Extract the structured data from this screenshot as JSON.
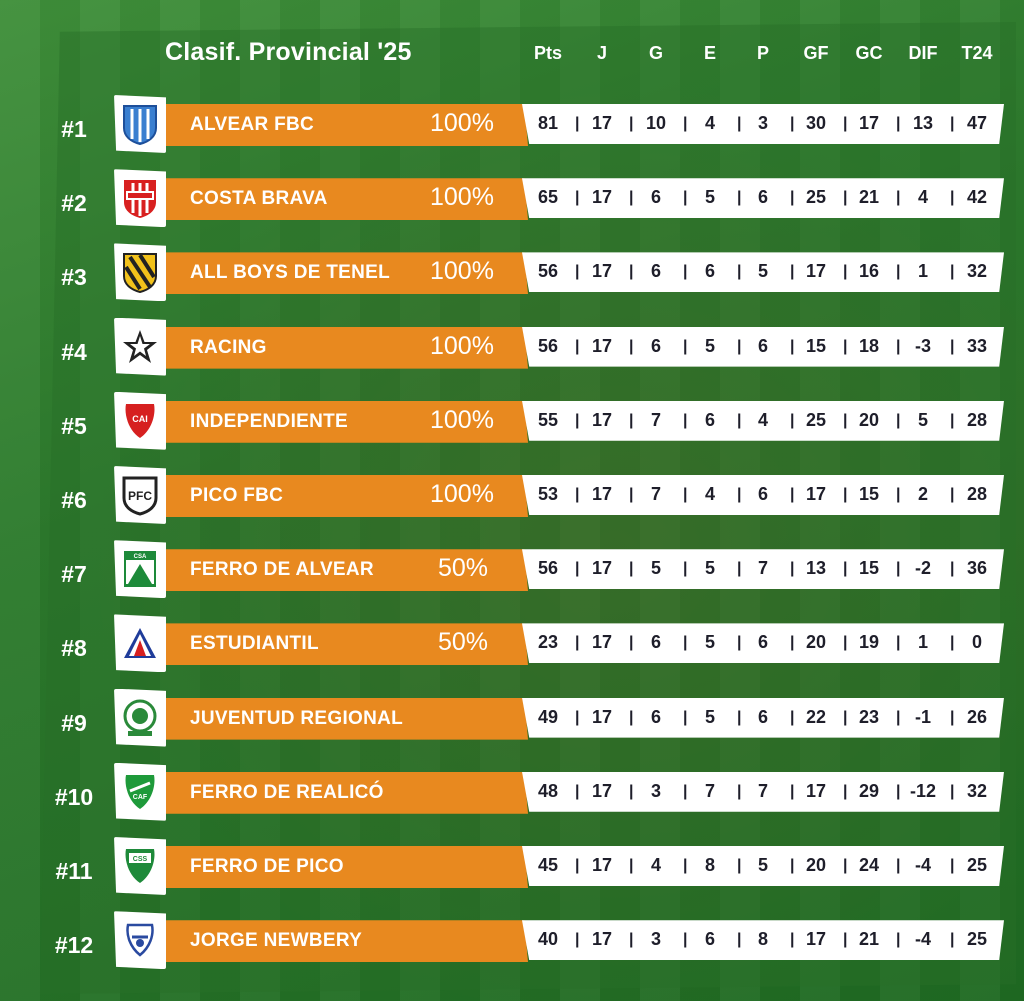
{
  "title": "Clasif. Provincial '25",
  "columns": [
    "Pts",
    "J",
    "G",
    "E",
    "P",
    "GF",
    "GC",
    "DIF",
    "T24"
  ],
  "rows": [
    {
      "rank": "#1",
      "team": "ALVEAR FBC",
      "pct": "100%",
      "logo": "alvear-fbc-crest-icon",
      "stats": [
        "81",
        "17",
        "10",
        "4",
        "3",
        "30",
        "17",
        "13",
        "47"
      ]
    },
    {
      "rank": "#2",
      "team": "COSTA BRAVA",
      "pct": "100%",
      "logo": "costa-brava-crest-icon",
      "stats": [
        "65",
        "17",
        "6",
        "5",
        "6",
        "25",
        "21",
        "4",
        "42"
      ]
    },
    {
      "rank": "#3",
      "team": "ALL BOYS DE TENEL",
      "pct": "100%",
      "logo": "all-boys-crest-icon",
      "stats": [
        "56",
        "17",
        "6",
        "6",
        "5",
        "17",
        "16",
        "1",
        "32"
      ]
    },
    {
      "rank": "#4",
      "team": "RACING",
      "pct": "100%",
      "logo": "racing-star-crest-icon",
      "stats": [
        "56",
        "17",
        "6",
        "5",
        "6",
        "15",
        "18",
        "-3",
        "33"
      ]
    },
    {
      "rank": "#5",
      "team": "INDEPENDIENTE",
      "pct": "100%",
      "logo": "independiente-crest-icon",
      "stats": [
        "55",
        "17",
        "7",
        "6",
        "4",
        "25",
        "20",
        "5",
        "28"
      ]
    },
    {
      "rank": "#6",
      "team": "PICO FBC",
      "pct": "100%",
      "logo": "pico-fbc-crest-icon",
      "stats": [
        "53",
        "17",
        "7",
        "4",
        "6",
        "17",
        "15",
        "2",
        "28"
      ]
    },
    {
      "rank": "#7",
      "team": "FERRO DE ALVEAR",
      "pct": "50%",
      "logo": "ferro-alvear-crest-icon",
      "stats": [
        "56",
        "17",
        "5",
        "5",
        "7",
        "13",
        "15",
        "-2",
        "36"
      ]
    },
    {
      "rank": "#8",
      "team": "ESTUDIANTIL",
      "pct": "50%",
      "logo": "estudiantil-crest-icon",
      "stats": [
        "23",
        "17",
        "6",
        "5",
        "6",
        "20",
        "19",
        "1",
        "0"
      ]
    },
    {
      "rank": "#9",
      "team": "JUVENTUD REGIONAL",
      "pct": "",
      "logo": "juventud-regional-crest-icon",
      "stats": [
        "49",
        "17",
        "6",
        "5",
        "6",
        "22",
        "23",
        "-1",
        "26"
      ]
    },
    {
      "rank": "#10",
      "team": "FERRO DE REALICÓ",
      "pct": "",
      "logo": "ferro-realico-crest-icon",
      "stats": [
        "48",
        "17",
        "3",
        "7",
        "7",
        "17",
        "29",
        "-12",
        "32"
      ]
    },
    {
      "rank": "#11",
      "team": "FERRO DE PICO",
      "pct": "",
      "logo": "ferro-pico-crest-icon",
      "stats": [
        "45",
        "17",
        "4",
        "8",
        "5",
        "20",
        "24",
        "-4",
        "25"
      ]
    },
    {
      "rank": "#12",
      "team": "JORGE NEWBERY",
      "pct": "",
      "logo": "jorge-newbery-crest-icon",
      "stats": [
        "40",
        "17",
        "3",
        "6",
        "8",
        "17",
        "21",
        "-4",
        "25"
      ]
    }
  ],
  "colors": {
    "bar": "#e8891f",
    "background": "#2c7a2c",
    "stats_bg": "#ffffff"
  }
}
